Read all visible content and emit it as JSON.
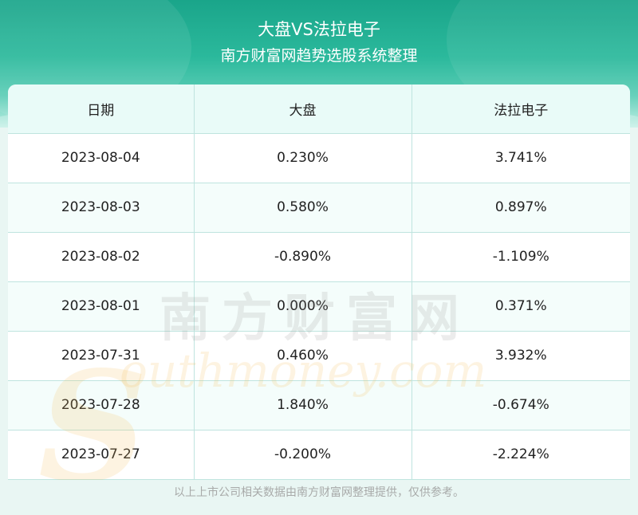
{
  "header": {
    "title": "大盘VS法拉电子",
    "subtitle": "南方财富网趋势选股系统整理"
  },
  "table": {
    "columns": [
      "日期",
      "大盘",
      "法拉电子"
    ],
    "rows": [
      [
        "2023-08-04",
        "0.230%",
        "3.741%"
      ],
      [
        "2023-08-03",
        "0.580%",
        "0.897%"
      ],
      [
        "2023-08-02",
        "-0.890%",
        "-1.109%"
      ],
      [
        "2023-08-01",
        "0.000%",
        "0.371%"
      ],
      [
        "2023-07-31",
        "0.460%",
        "3.932%"
      ],
      [
        "2023-07-28",
        "1.840%",
        "-0.674%"
      ],
      [
        "2023-07-27",
        "-0.200%",
        "-2.224%"
      ]
    ]
  },
  "watermark": {
    "cn": "南方财富网",
    "en_initial": "S",
    "en_rest": "outhmoney.com"
  },
  "footer": {
    "note": "以上上市公司相关数据由南方财富网整理提供，仅供参考。"
  },
  "colors": {
    "header_teal": "#1aa58a",
    "border": "#bfe4df"
  }
}
